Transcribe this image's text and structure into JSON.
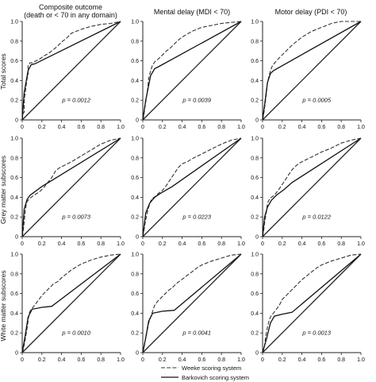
{
  "column_titles": [
    {
      "line1": "Composite outcome",
      "line2": "(death or < 70 in any domain)"
    },
    {
      "line1": "Mental delay (MDI < 70)",
      "line2": ""
    },
    {
      "line1": "Motor delay (PDI < 70)",
      "line2": ""
    }
  ],
  "row_titles": [
    "Total scores",
    "Grey matter subscores",
    "White matter subscores"
  ],
  "legend": {
    "weeke": "Weeke scoring system",
    "barkovich": "Barkovich scoring system"
  },
  "colors": {
    "line": "#111111",
    "background": "#ffffff"
  },
  "chart_data": [
    {
      "type": "line",
      "row": 0,
      "col": 0,
      "p_label": "p = 0.0012",
      "x_ticks": [
        "0",
        "0.2",
        "0.4",
        "0.6",
        "0.8",
        "1.0"
      ],
      "y_ticks": [
        "0",
        "0.2",
        "0.4",
        "0.6",
        "0.8",
        "1.0"
      ],
      "xlim": [
        0,
        1
      ],
      "ylim": [
        0,
        1
      ],
      "series": [
        {
          "key": "weeke",
          "x": [
            0,
            0.01,
            0.02,
            0.02,
            0.04,
            0.05,
            0.06,
            0.06,
            0.08,
            0.1,
            0.14,
            0.18,
            0.22,
            0.26,
            0.3,
            0.35,
            0.4,
            0.45,
            0.5,
            0.55,
            0.6,
            0.7,
            0.8,
            0.9,
            1.0
          ],
          "y": [
            0,
            0.07,
            0.08,
            0.2,
            0.35,
            0.42,
            0.46,
            0.55,
            0.58,
            0.58,
            0.6,
            0.62,
            0.65,
            0.67,
            0.7,
            0.74,
            0.79,
            0.83,
            0.88,
            0.9,
            0.92,
            0.95,
            0.97,
            0.98,
            1.0
          ]
        },
        {
          "key": "barkovich",
          "x": [
            0,
            0.02,
            0.06,
            0.09,
            0.13,
            1.0
          ],
          "y": [
            0,
            0.28,
            0.5,
            0.56,
            0.57,
            1.0
          ]
        },
        {
          "key": "reference",
          "x": [
            0,
            1
          ],
          "y": [
            0,
            1
          ]
        }
      ]
    },
    {
      "type": "line",
      "row": 0,
      "col": 1,
      "p_label": "p = 0.0039",
      "x_ticks": [
        "0",
        "0.2",
        "0.4",
        "0.6",
        "0.8",
        "1.0"
      ],
      "y_ticks": [
        "0",
        "0.2",
        "0.4",
        "0.6",
        "0.8",
        "1.0"
      ],
      "xlim": [
        0,
        1
      ],
      "ylim": [
        0,
        1
      ],
      "series": [
        {
          "key": "weeke",
          "x": [
            0,
            0.01,
            0.02,
            0.04,
            0.05,
            0.06,
            0.08,
            0.1,
            0.13,
            0.16,
            0.2,
            0.24,
            0.28,
            0.32,
            0.36,
            0.4,
            0.45,
            0.5,
            0.55,
            0.6,
            0.7,
            0.8,
            0.9,
            1.0
          ],
          "y": [
            0,
            0.04,
            0.12,
            0.25,
            0.32,
            0.42,
            0.5,
            0.56,
            0.6,
            0.62,
            0.66,
            0.7,
            0.73,
            0.77,
            0.81,
            0.84,
            0.87,
            0.9,
            0.92,
            0.94,
            0.96,
            0.98,
            0.99,
            1.0
          ]
        },
        {
          "key": "barkovich",
          "x": [
            0,
            0.03,
            0.08,
            0.12,
            0.16,
            1.0
          ],
          "y": [
            0,
            0.2,
            0.45,
            0.52,
            0.54,
            1.0
          ]
        },
        {
          "key": "reference",
          "x": [
            0,
            1
          ],
          "y": [
            0,
            1
          ]
        }
      ]
    },
    {
      "type": "line",
      "row": 0,
      "col": 2,
      "p_label": "p = 0.0005",
      "x_ticks": [
        "0",
        "0.2",
        "0.4",
        "0.6",
        "0.8",
        "1.0"
      ],
      "y_ticks": [
        "0",
        "0.2",
        "0.4",
        "0.6",
        "0.8",
        "1.0"
      ],
      "xlim": [
        0,
        1
      ],
      "ylim": [
        0,
        1
      ],
      "series": [
        {
          "key": "weeke",
          "x": [
            0,
            0.01,
            0.02,
            0.04,
            0.05,
            0.06,
            0.08,
            0.1,
            0.14,
            0.18,
            0.22,
            0.26,
            0.3,
            0.35,
            0.4,
            0.45,
            0.5,
            0.55,
            0.6,
            0.65,
            0.7,
            0.75,
            0.8,
            1.0
          ],
          "y": [
            0,
            0.05,
            0.12,
            0.28,
            0.38,
            0.42,
            0.5,
            0.55,
            0.6,
            0.64,
            0.68,
            0.72,
            0.76,
            0.8,
            0.84,
            0.87,
            0.9,
            0.92,
            0.94,
            0.96,
            0.98,
            0.99,
            1.0,
            1.0
          ]
        },
        {
          "key": "barkovich",
          "x": [
            0,
            0.02,
            0.05,
            0.08,
            0.11,
            1.0
          ],
          "y": [
            0,
            0.15,
            0.38,
            0.47,
            0.5,
            1.0
          ]
        },
        {
          "key": "reference",
          "x": [
            0,
            1
          ],
          "y": [
            0,
            1
          ]
        }
      ]
    },
    {
      "type": "line",
      "row": 1,
      "col": 0,
      "p_label": "p = 0.0073",
      "x_ticks": [
        "0",
        "0.2",
        "0.4",
        "0.6",
        "0.8",
        "1.0"
      ],
      "y_ticks": [
        "0",
        "0.2",
        "0.4",
        "0.6",
        "0.8",
        "1.0"
      ],
      "xlim": [
        0,
        1
      ],
      "ylim": [
        0,
        1
      ],
      "series": [
        {
          "key": "weeke",
          "x": [
            0,
            0.01,
            0.02,
            0.03,
            0.04,
            0.05,
            0.07,
            0.09,
            0.12,
            0.15,
            0.18,
            0.22,
            0.26,
            0.3,
            0.34,
            0.38,
            0.42,
            0.46,
            0.5,
            0.6,
            0.7,
            0.8,
            0.9,
            1.0
          ],
          "y": [
            0,
            0.06,
            0.15,
            0.25,
            0.32,
            0.36,
            0.38,
            0.4,
            0.42,
            0.44,
            0.46,
            0.5,
            0.55,
            0.6,
            0.67,
            0.7,
            0.72,
            0.74,
            0.76,
            0.82,
            0.88,
            0.94,
            0.98,
            1.0
          ]
        },
        {
          "key": "barkovich",
          "x": [
            0,
            0.02,
            0.05,
            0.08,
            0.12,
            0.2,
            0.3,
            1.0
          ],
          "y": [
            0,
            0.28,
            0.38,
            0.42,
            0.45,
            0.51,
            0.57,
            1.0
          ]
        },
        {
          "key": "reference",
          "x": [
            0,
            1
          ],
          "y": [
            0,
            1
          ]
        }
      ]
    },
    {
      "type": "line",
      "row": 1,
      "col": 1,
      "p_label": "p = 0.0223",
      "x_ticks": [
        "0",
        "0.2",
        "0.4",
        "0.6",
        "0.8",
        "1.0"
      ],
      "y_ticks": [
        "0",
        "0.2",
        "0.4",
        "0.6",
        "0.8",
        "1.0"
      ],
      "xlim": [
        0,
        1
      ],
      "ylim": [
        0,
        1
      ],
      "series": [
        {
          "key": "weeke",
          "x": [
            0,
            0.01,
            0.02,
            0.04,
            0.06,
            0.08,
            0.1,
            0.13,
            0.16,
            0.2,
            0.24,
            0.28,
            0.32,
            0.36,
            0.4,
            0.45,
            0.5,
            0.6,
            0.7,
            0.8,
            0.9,
            1.0
          ],
          "y": [
            0,
            0.05,
            0.12,
            0.22,
            0.3,
            0.36,
            0.39,
            0.41,
            0.44,
            0.47,
            0.52,
            0.58,
            0.64,
            0.7,
            0.74,
            0.76,
            0.79,
            0.84,
            0.89,
            0.94,
            0.98,
            1.0
          ]
        },
        {
          "key": "barkovich",
          "x": [
            0,
            0.03,
            0.07,
            0.12,
            0.18,
            0.3,
            1.0
          ],
          "y": [
            0,
            0.24,
            0.34,
            0.4,
            0.44,
            0.51,
            1.0
          ]
        },
        {
          "key": "reference",
          "x": [
            0,
            1
          ],
          "y": [
            0,
            1
          ]
        }
      ]
    },
    {
      "type": "line",
      "row": 1,
      "col": 2,
      "p_label": "p = 0.0122",
      "x_ticks": [
        "0",
        "0.2",
        "0.4",
        "0.6",
        "0.8",
        "1.0"
      ],
      "y_ticks": [
        "0",
        "0.2",
        "0.4",
        "0.6",
        "0.8",
        "1.0"
      ],
      "xlim": [
        0,
        1
      ],
      "ylim": [
        0,
        1
      ],
      "series": [
        {
          "key": "weeke",
          "x": [
            0,
            0.01,
            0.02,
            0.04,
            0.05,
            0.07,
            0.09,
            0.12,
            0.15,
            0.18,
            0.22,
            0.26,
            0.3,
            0.34,
            0.38,
            0.42,
            0.46,
            0.5,
            0.6,
            0.7,
            0.8,
            0.9,
            1.0
          ],
          "y": [
            0,
            0.05,
            0.14,
            0.26,
            0.34,
            0.38,
            0.4,
            0.42,
            0.46,
            0.5,
            0.56,
            0.62,
            0.68,
            0.72,
            0.75,
            0.77,
            0.79,
            0.81,
            0.86,
            0.9,
            0.95,
            0.98,
            1.0
          ]
        },
        {
          "key": "barkovich",
          "x": [
            0,
            0.02,
            0.05,
            0.09,
            0.14,
            0.22,
            0.3,
            1.0
          ],
          "y": [
            0,
            0.2,
            0.3,
            0.37,
            0.42,
            0.48,
            0.55,
            1.0
          ]
        },
        {
          "key": "reference",
          "x": [
            0,
            1
          ],
          "y": [
            0,
            1
          ]
        }
      ]
    },
    {
      "type": "line",
      "row": 2,
      "col": 0,
      "p_label": "p = 0.0010",
      "x_ticks": [
        "0",
        "0.2",
        "0.4",
        "0.6",
        "0.8",
        "1.0"
      ],
      "y_ticks": [
        "0",
        "0.2",
        "0.4",
        "0.6",
        "0.8",
        "1.0"
      ],
      "xlim": [
        0,
        1
      ],
      "ylim": [
        0,
        1
      ],
      "series": [
        {
          "key": "weeke",
          "x": [
            0,
            0.01,
            0.02,
            0.03,
            0.05,
            0.07,
            0.09,
            0.11,
            0.14,
            0.17,
            0.2,
            0.24,
            0.28,
            0.32,
            0.36,
            0.4,
            0.45,
            0.5,
            0.55,
            0.6,
            0.7,
            0.8,
            0.9,
            1.0
          ],
          "y": [
            0,
            0.03,
            0.08,
            0.13,
            0.25,
            0.4,
            0.44,
            0.46,
            0.5,
            0.54,
            0.58,
            0.62,
            0.66,
            0.7,
            0.72,
            0.76,
            0.8,
            0.84,
            0.87,
            0.9,
            0.94,
            0.97,
            0.99,
            1.0
          ]
        },
        {
          "key": "barkovich",
          "x": [
            0,
            0.03,
            0.06,
            0.1,
            0.2,
            0.3,
            1.0
          ],
          "y": [
            0,
            0.17,
            0.36,
            0.44,
            0.46,
            0.47,
            1.0
          ]
        },
        {
          "key": "reference",
          "x": [
            0,
            1
          ],
          "y": [
            0,
            1
          ]
        }
      ]
    },
    {
      "type": "line",
      "row": 2,
      "col": 1,
      "p_label": "p = 0.0041",
      "x_ticks": [
        "0",
        "0.2",
        "0.4",
        "0.6",
        "0.8",
        "1.0"
      ],
      "y_ticks": [
        "0",
        "0.2",
        "0.4",
        "0.6",
        "0.8",
        "1.0"
      ],
      "xlim": [
        0,
        1
      ],
      "ylim": [
        0,
        1
      ],
      "series": [
        {
          "key": "weeke",
          "x": [
            0,
            0.01,
            0.02,
            0.04,
            0.06,
            0.08,
            0.1,
            0.12,
            0.15,
            0.18,
            0.22,
            0.26,
            0.3,
            0.34,
            0.38,
            0.42,
            0.46,
            0.5,
            0.55,
            0.6,
            0.7,
            0.8,
            0.9,
            1.0
          ],
          "y": [
            0,
            0.04,
            0.1,
            0.2,
            0.3,
            0.36,
            0.42,
            0.48,
            0.52,
            0.55,
            0.59,
            0.63,
            0.66,
            0.7,
            0.73,
            0.76,
            0.79,
            0.82,
            0.86,
            0.89,
            0.93,
            0.96,
            0.99,
            1.0
          ]
        },
        {
          "key": "barkovich",
          "x": [
            0,
            0.03,
            0.06,
            0.1,
            0.2,
            0.32,
            1.0
          ],
          "y": [
            0,
            0.15,
            0.32,
            0.4,
            0.42,
            0.43,
            1.0
          ]
        },
        {
          "key": "reference",
          "x": [
            0,
            1
          ],
          "y": [
            0,
            1
          ]
        }
      ]
    },
    {
      "type": "line",
      "row": 2,
      "col": 2,
      "p_label": "p = 0.0013",
      "x_ticks": [
        "0",
        "0.2",
        "0.4",
        "0.6",
        "0.8",
        "1.0"
      ],
      "y_ticks": [
        "0",
        "0.2",
        "0.4",
        "0.6",
        "0.8",
        "1.0"
      ],
      "xlim": [
        0,
        1
      ],
      "ylim": [
        0,
        1
      ],
      "series": [
        {
          "key": "weeke",
          "x": [
            0,
            0.01,
            0.02,
            0.03,
            0.05,
            0.07,
            0.09,
            0.11,
            0.14,
            0.17,
            0.2,
            0.24,
            0.28,
            0.32,
            0.36,
            0.4,
            0.45,
            0.5,
            0.55,
            0.6,
            0.7,
            0.8,
            0.9,
            1.0
          ],
          "y": [
            0,
            0.03,
            0.07,
            0.15,
            0.26,
            0.34,
            0.38,
            0.4,
            0.44,
            0.48,
            0.54,
            0.58,
            0.62,
            0.66,
            0.7,
            0.74,
            0.78,
            0.82,
            0.86,
            0.89,
            0.93,
            0.96,
            0.99,
            1.0
          ]
        },
        {
          "key": "barkovich",
          "x": [
            0,
            0.04,
            0.08,
            0.12,
            0.2,
            0.3,
            1.0
          ],
          "y": [
            0,
            0.14,
            0.3,
            0.37,
            0.39,
            0.41,
            1.0
          ]
        },
        {
          "key": "reference",
          "x": [
            0,
            1
          ],
          "y": [
            0,
            1
          ]
        }
      ]
    }
  ]
}
